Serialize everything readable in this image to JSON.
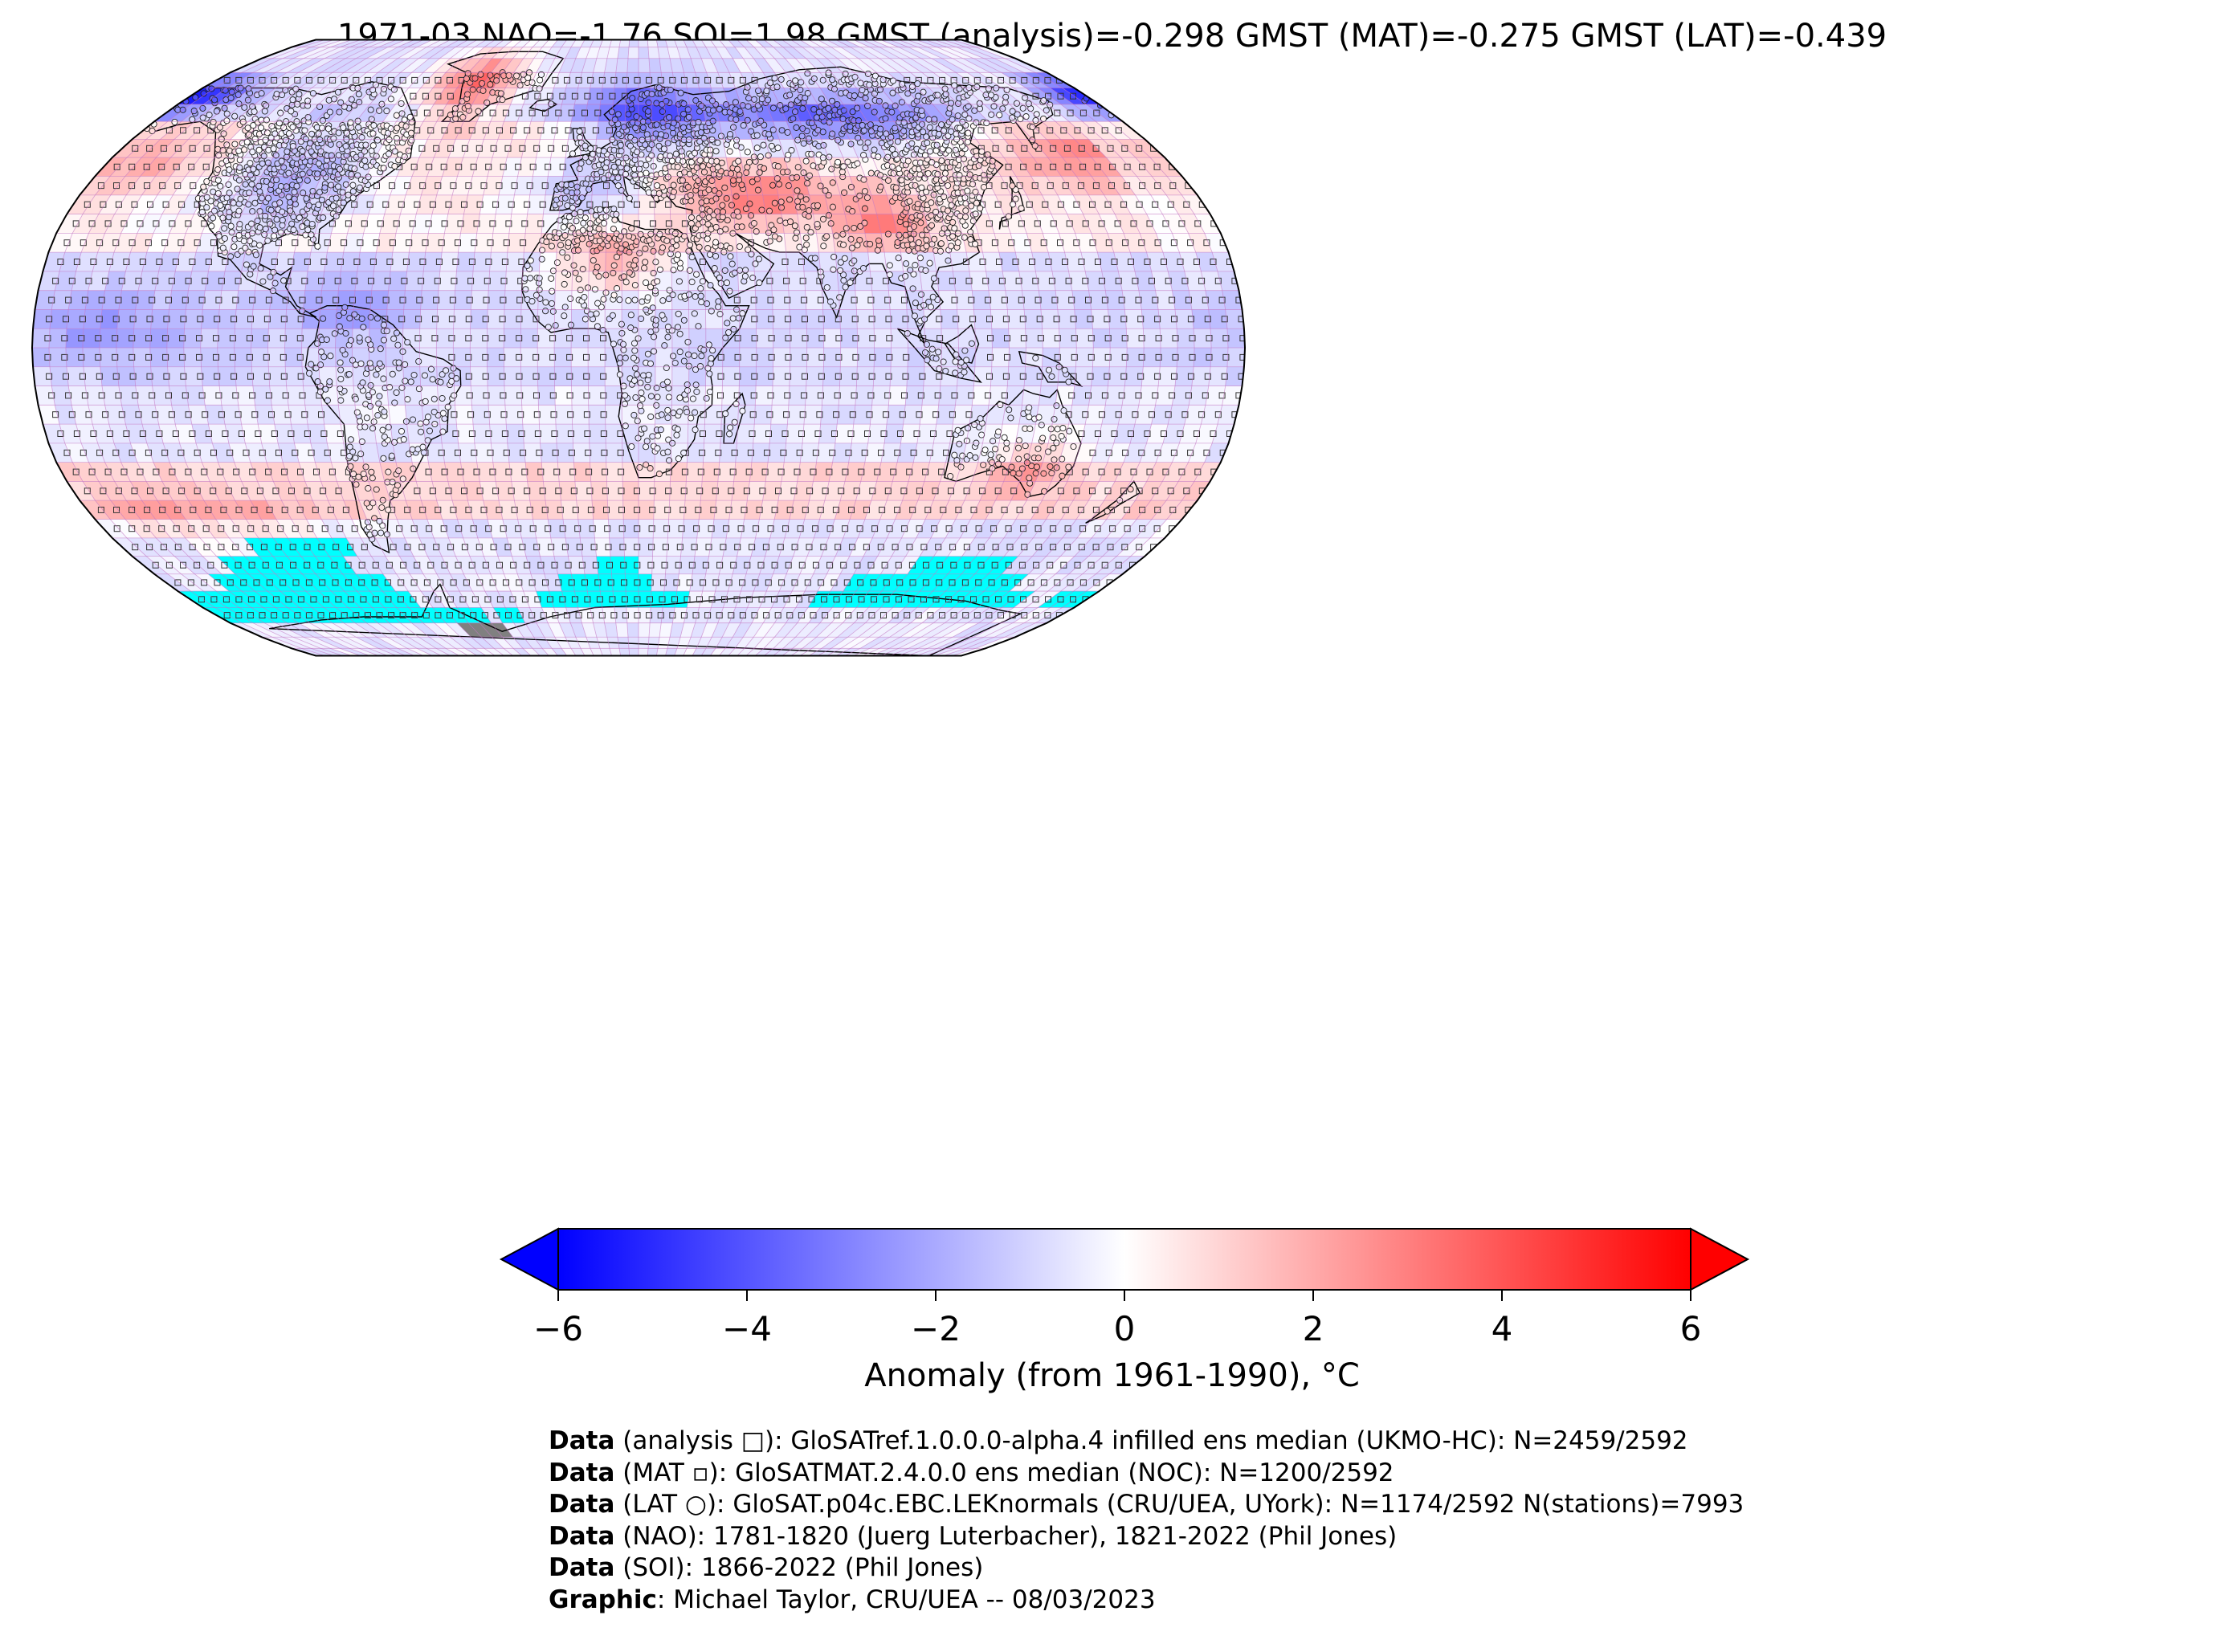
{
  "title": "1971-03 NAO=-1.76 SOI=1.98 GMST (analysis)=-0.298 GMST (MAT)=-0.275 GMST (LAT)=-0.439",
  "colorbar": {
    "label": "Anomaly (from 1961-1990), °C",
    "ticks": [
      "−6",
      "−4",
      "−2",
      "0",
      "2",
      "4",
      "6"
    ],
    "min": -6,
    "max": 6,
    "colors": {
      "cold": "#0000ff",
      "neutral": "#ffffff",
      "warm": "#ff0000"
    }
  },
  "map": {
    "projection": "Robinson",
    "colors": {
      "sea_ice_mask": "#00ffff",
      "missing": "#808080",
      "grid": "#c070c0",
      "coast": "#000000"
    }
  },
  "credits": [
    {
      "key": "Data",
      "text": " (analysis □): GloSATref.1.0.0.0-alpha.4 infilled ens median (UKMO-HC): N=2459/2592"
    },
    {
      "key": "Data",
      "text": " (MAT ▫): GloSATMAT.2.4.0.0 ens median (NOC): N=1200/2592"
    },
    {
      "key": "Data",
      "text": " (LAT ○): GloSAT.p04c.EBC.LEKnormals (CRU/UEA, UYork): N=1174/2592 N(stations)=7993"
    },
    {
      "key": "Data",
      "text": " (NAO): 1781-1820 (Juerg Luterbacher), 1821-2022 (Phil Jones)"
    },
    {
      "key": "Data",
      "text": " (SOI): 1866-2022 (Phil Jones)"
    },
    {
      "key": "Graphic",
      "text": ": Michael Taylor, CRU/UEA -- 08/03/2023"
    }
  ]
}
